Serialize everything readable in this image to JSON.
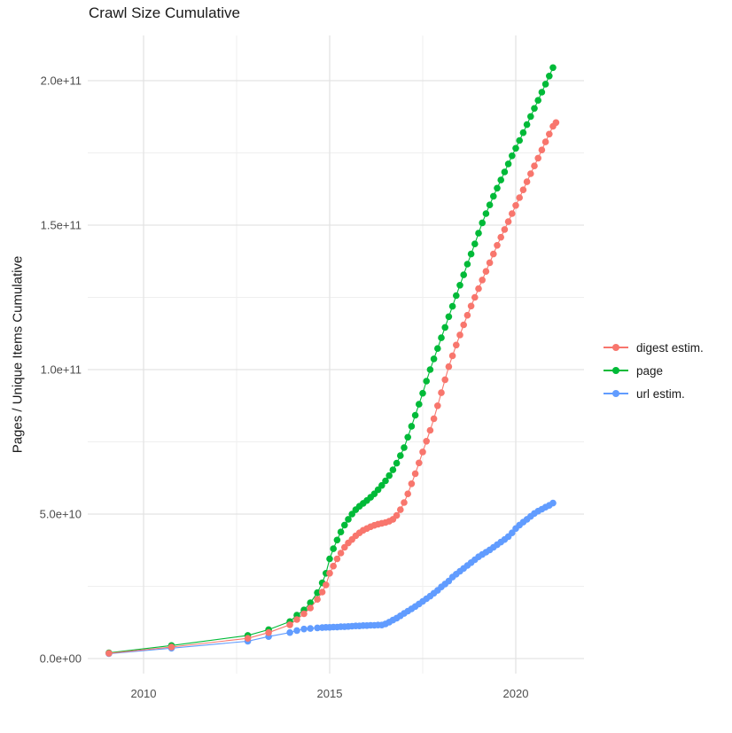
{
  "chart_data": {
    "type": "scatter",
    "title": "Crawl Size Cumulative",
    "xlabel": "",
    "ylabel": "Pages / Unique Items Cumulative",
    "value_unit": "values given in units of 1e10 pages / unique items",
    "xlim": [
      2008.5,
      2021.83
    ],
    "ylim_e10": [
      -0.52,
      21.56
    ],
    "grid": "on",
    "legend_position": "right",
    "axes": {
      "x": {
        "major": [
          2010,
          2015,
          2020
        ],
        "minor": [
          2012.5,
          2017.5
        ],
        "tick_labels": [
          "2010",
          "2015",
          "2020"
        ]
      },
      "y": {
        "major_e10": [
          0,
          5,
          10,
          15,
          20
        ],
        "minor_e10": [
          2.5,
          7.5,
          12.5,
          17.5
        ],
        "tick_labels": [
          "0.0e+00",
          "5.0e+10",
          "1.0e+11",
          "1.5e+11",
          "2.0e+11"
        ]
      }
    },
    "series": [
      {
        "name": "digest estim.",
        "color": "#F8766D",
        "points": [
          [
            2009.07,
            0.18
          ],
          [
            2010.75,
            0.4
          ],
          [
            2012.8,
            0.7
          ],
          [
            2013.36,
            0.9
          ],
          [
            2013.93,
            1.17
          ],
          [
            2014.12,
            1.35
          ],
          [
            2014.31,
            1.55
          ],
          [
            2014.48,
            1.75
          ],
          [
            2014.67,
            2.05
          ],
          [
            2014.8,
            2.3
          ],
          [
            2014.9,
            2.55
          ],
          [
            2015.0,
            2.95
          ],
          [
            2015.1,
            3.2
          ],
          [
            2015.2,
            3.45
          ],
          [
            2015.3,
            3.65
          ],
          [
            2015.4,
            3.85
          ],
          [
            2015.5,
            4.0
          ],
          [
            2015.6,
            4.12
          ],
          [
            2015.7,
            4.25
          ],
          [
            2015.8,
            4.35
          ],
          [
            2015.9,
            4.44
          ],
          [
            2016.0,
            4.5
          ],
          [
            2016.1,
            4.56
          ],
          [
            2016.2,
            4.61
          ],
          [
            2016.3,
            4.65
          ],
          [
            2016.4,
            4.68
          ],
          [
            2016.5,
            4.71
          ],
          [
            2016.6,
            4.75
          ],
          [
            2016.7,
            4.82
          ],
          [
            2016.8,
            4.95
          ],
          [
            2016.9,
            5.15
          ],
          [
            2017.0,
            5.4
          ],
          [
            2017.1,
            5.7
          ],
          [
            2017.2,
            6.05
          ],
          [
            2017.3,
            6.4
          ],
          [
            2017.4,
            6.77
          ],
          [
            2017.5,
            7.15
          ],
          [
            2017.6,
            7.52
          ],
          [
            2017.7,
            7.9
          ],
          [
            2017.8,
            8.3
          ],
          [
            2017.9,
            8.75
          ],
          [
            2018.0,
            9.2
          ],
          [
            2018.1,
            9.65
          ],
          [
            2018.2,
            10.1
          ],
          [
            2018.3,
            10.48
          ],
          [
            2018.4,
            10.85
          ],
          [
            2018.5,
            11.2
          ],
          [
            2018.6,
            11.55
          ],
          [
            2018.7,
            11.88
          ],
          [
            2018.8,
            12.2
          ],
          [
            2018.9,
            12.5
          ],
          [
            2019.0,
            12.8
          ],
          [
            2019.1,
            13.1
          ],
          [
            2019.2,
            13.4
          ],
          [
            2019.3,
            13.7
          ],
          [
            2019.4,
            14.0
          ],
          [
            2019.5,
            14.3
          ],
          [
            2019.6,
            14.58
          ],
          [
            2019.7,
            14.85
          ],
          [
            2019.8,
            15.12
          ],
          [
            2019.9,
            15.4
          ],
          [
            2020.0,
            15.68
          ],
          [
            2020.1,
            15.95
          ],
          [
            2020.2,
            16.22
          ],
          [
            2020.3,
            16.5
          ],
          [
            2020.4,
            16.78
          ],
          [
            2020.5,
            17.05
          ],
          [
            2020.6,
            17.32
          ],
          [
            2020.7,
            17.6
          ],
          [
            2020.8,
            17.88
          ],
          [
            2020.9,
            18.15
          ],
          [
            2021.0,
            18.42
          ],
          [
            2021.08,
            18.55
          ]
        ]
      },
      {
        "name": "page",
        "color": "#00BA38",
        "points": [
          [
            2009.07,
            0.2
          ],
          [
            2010.75,
            0.45
          ],
          [
            2012.8,
            0.8
          ],
          [
            2013.36,
            1.0
          ],
          [
            2013.93,
            1.28
          ],
          [
            2014.12,
            1.5
          ],
          [
            2014.31,
            1.68
          ],
          [
            2014.48,
            1.93
          ],
          [
            2014.67,
            2.28
          ],
          [
            2014.8,
            2.62
          ],
          [
            2014.9,
            2.95
          ],
          [
            2015.0,
            3.45
          ],
          [
            2015.1,
            3.8
          ],
          [
            2015.2,
            4.1
          ],
          [
            2015.3,
            4.38
          ],
          [
            2015.4,
            4.62
          ],
          [
            2015.5,
            4.82
          ],
          [
            2015.6,
            5.0
          ],
          [
            2015.7,
            5.15
          ],
          [
            2015.8,
            5.27
          ],
          [
            2015.9,
            5.37
          ],
          [
            2016.0,
            5.47
          ],
          [
            2016.1,
            5.58
          ],
          [
            2016.2,
            5.7
          ],
          [
            2016.3,
            5.84
          ],
          [
            2016.4,
            5.99
          ],
          [
            2016.5,
            6.15
          ],
          [
            2016.6,
            6.33
          ],
          [
            2016.7,
            6.53
          ],
          [
            2016.8,
            6.76
          ],
          [
            2016.9,
            7.02
          ],
          [
            2017.0,
            7.3
          ],
          [
            2017.1,
            7.66
          ],
          [
            2017.2,
            8.04
          ],
          [
            2017.3,
            8.42
          ],
          [
            2017.4,
            8.8
          ],
          [
            2017.5,
            9.18
          ],
          [
            2017.6,
            9.6
          ],
          [
            2017.7,
            10.0
          ],
          [
            2017.8,
            10.37
          ],
          [
            2017.9,
            10.73
          ],
          [
            2018.0,
            11.1
          ],
          [
            2018.1,
            11.46
          ],
          [
            2018.2,
            11.83
          ],
          [
            2018.3,
            12.19
          ],
          [
            2018.4,
            12.56
          ],
          [
            2018.5,
            12.92
          ],
          [
            2018.6,
            13.28
          ],
          [
            2018.7,
            13.65
          ],
          [
            2018.8,
            14.0
          ],
          [
            2018.9,
            14.35
          ],
          [
            2019.0,
            14.72
          ],
          [
            2019.1,
            15.08
          ],
          [
            2019.2,
            15.4
          ],
          [
            2019.3,
            15.7
          ],
          [
            2019.4,
            16.0
          ],
          [
            2019.5,
            16.28
          ],
          [
            2019.6,
            16.56
          ],
          [
            2019.7,
            16.84
          ],
          [
            2019.8,
            17.12
          ],
          [
            2019.9,
            17.4
          ],
          [
            2020.0,
            17.66
          ],
          [
            2020.1,
            17.93
          ],
          [
            2020.2,
            18.2
          ],
          [
            2020.3,
            18.48
          ],
          [
            2020.4,
            18.76
          ],
          [
            2020.5,
            19.04
          ],
          [
            2020.6,
            19.32
          ],
          [
            2020.7,
            19.6
          ],
          [
            2020.8,
            19.88
          ],
          [
            2020.9,
            20.16
          ],
          [
            2021.0,
            20.45
          ]
        ]
      },
      {
        "name": "url estim.",
        "color": "#619CFF",
        "points": [
          [
            2009.07,
            0.17
          ],
          [
            2010.75,
            0.36
          ],
          [
            2012.8,
            0.6
          ],
          [
            2013.36,
            0.76
          ],
          [
            2013.93,
            0.9
          ],
          [
            2014.12,
            0.97
          ],
          [
            2014.31,
            1.02
          ],
          [
            2014.48,
            1.04
          ],
          [
            2014.67,
            1.06
          ],
          [
            2014.8,
            1.07
          ],
          [
            2014.9,
            1.08
          ],
          [
            2015.0,
            1.08
          ],
          [
            2015.1,
            1.09
          ],
          [
            2015.2,
            1.09
          ],
          [
            2015.3,
            1.1
          ],
          [
            2015.4,
            1.1
          ],
          [
            2015.5,
            1.11
          ],
          [
            2015.6,
            1.12
          ],
          [
            2015.7,
            1.13
          ],
          [
            2015.8,
            1.13
          ],
          [
            2015.9,
            1.14
          ],
          [
            2016.0,
            1.14
          ],
          [
            2016.1,
            1.15
          ],
          [
            2016.2,
            1.15
          ],
          [
            2016.3,
            1.16
          ],
          [
            2016.4,
            1.16
          ],
          [
            2016.5,
            1.2
          ],
          [
            2016.6,
            1.26
          ],
          [
            2016.7,
            1.33
          ],
          [
            2016.8,
            1.4
          ],
          [
            2016.9,
            1.48
          ],
          [
            2017.0,
            1.56
          ],
          [
            2017.1,
            1.64
          ],
          [
            2017.2,
            1.72
          ],
          [
            2017.3,
            1.8
          ],
          [
            2017.4,
            1.89
          ],
          [
            2017.5,
            1.98
          ],
          [
            2017.6,
            2.07
          ],
          [
            2017.7,
            2.16
          ],
          [
            2017.8,
            2.26
          ],
          [
            2017.9,
            2.36
          ],
          [
            2018.0,
            2.48
          ],
          [
            2018.1,
            2.58
          ],
          [
            2018.2,
            2.68
          ],
          [
            2018.3,
            2.82
          ],
          [
            2018.4,
            2.92
          ],
          [
            2018.5,
            3.02
          ],
          [
            2018.6,
            3.12
          ],
          [
            2018.7,
            3.22
          ],
          [
            2018.8,
            3.32
          ],
          [
            2018.9,
            3.42
          ],
          [
            2019.0,
            3.52
          ],
          [
            2019.1,
            3.6
          ],
          [
            2019.2,
            3.68
          ],
          [
            2019.3,
            3.76
          ],
          [
            2019.4,
            3.85
          ],
          [
            2019.5,
            3.94
          ],
          [
            2019.6,
            4.03
          ],
          [
            2019.7,
            4.12
          ],
          [
            2019.8,
            4.22
          ],
          [
            2019.9,
            4.35
          ],
          [
            2020.0,
            4.5
          ],
          [
            2020.1,
            4.62
          ],
          [
            2020.2,
            4.72
          ],
          [
            2020.3,
            4.82
          ],
          [
            2020.4,
            4.92
          ],
          [
            2020.5,
            5.02
          ],
          [
            2020.6,
            5.1
          ],
          [
            2020.7,
            5.17
          ],
          [
            2020.8,
            5.24
          ],
          [
            2020.9,
            5.3
          ],
          [
            2021.0,
            5.38
          ]
        ]
      }
    ]
  }
}
